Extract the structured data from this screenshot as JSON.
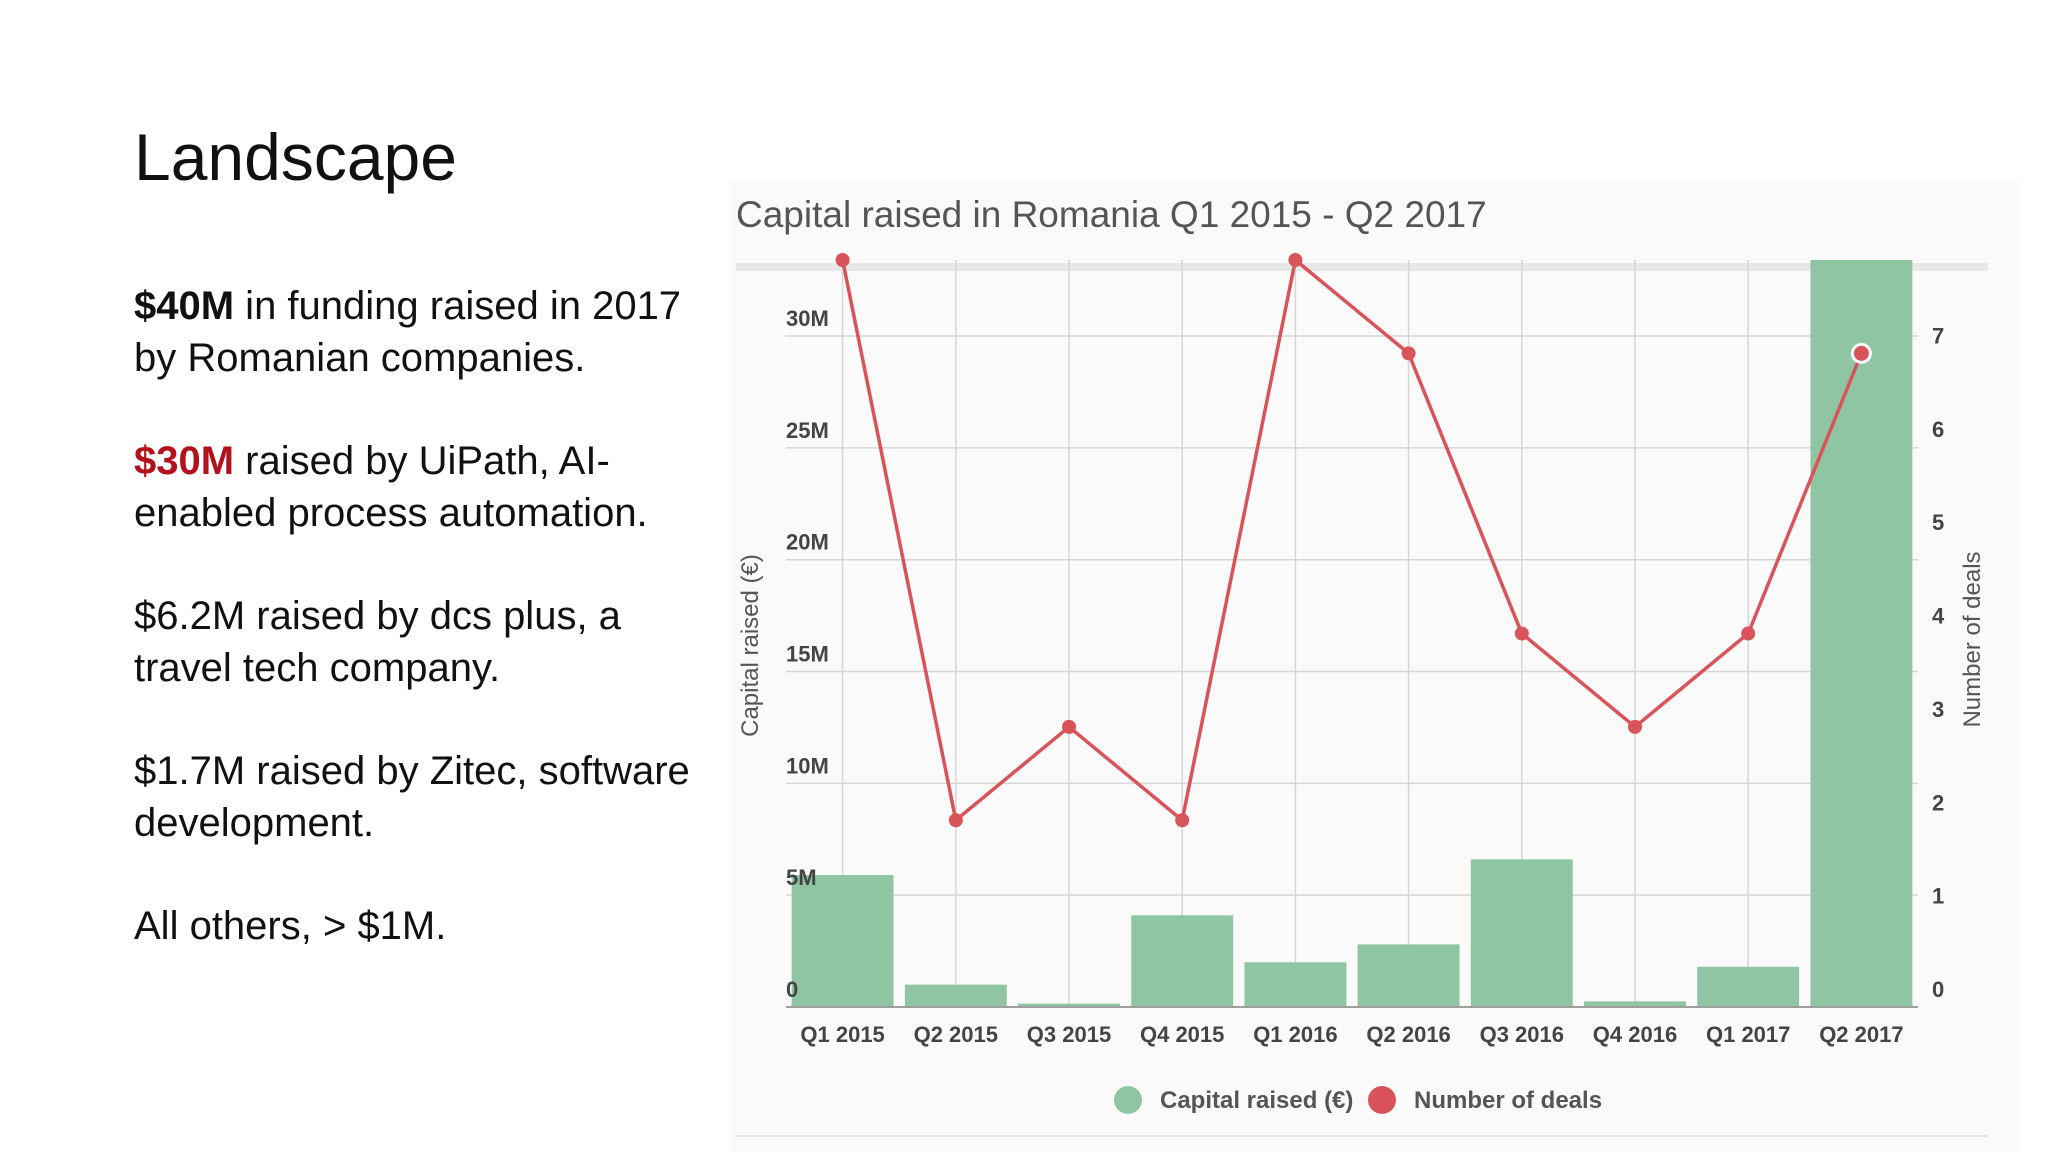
{
  "slide": {
    "title": "Landscape",
    "bullets": [
      {
        "highlight": "$40M",
        "highlight_color": "#111111",
        "text": " in funding raised in 2017 by Romanian companies."
      },
      {
        "highlight": "$30M",
        "highlight_color": "#b3121d",
        "text": " raised by UiPath, AI-enabled process automation."
      },
      {
        "highlight": "",
        "highlight_color": "#111111",
        "text": "$6.2M raised by dcs plus, a travel tech company."
      },
      {
        "highlight": "",
        "highlight_color": "#111111",
        "text": "$1.7M raised by Zitec, software development."
      },
      {
        "highlight": "",
        "highlight_color": "#111111",
        "text": "All others, > $1M."
      }
    ]
  },
  "chart_data": {
    "type": "bar",
    "title": "Capital raised in Romania Q1 2015 - Q2 2017",
    "categories": [
      "Q1 2015",
      "Q2 2015",
      "Q3 2015",
      "Q4 2015",
      "Q1 2016",
      "Q2 2016",
      "Q3 2016",
      "Q4 2016",
      "Q1 2017",
      "Q2 2017"
    ],
    "series": [
      {
        "name": "Capital raised (€)",
        "type": "bar",
        "axis": "left",
        "color": "#8fc5a3",
        "values": [
          5.9,
          1.0,
          0.15,
          4.1,
          2.0,
          2.8,
          6.6,
          0.25,
          1.8,
          33.4
        ]
      },
      {
        "name": "Number of deals",
        "type": "line",
        "axis": "right",
        "color": "#d9545a",
        "values": [
          8,
          2,
          3,
          2,
          8,
          7,
          4,
          3,
          4,
          7
        ]
      }
    ],
    "ylabel": "Capital raised (€)",
    "ylabel_right": "Number of deals",
    "ylim": [
      0,
      33.4
    ],
    "y_ticks": [
      0,
      5,
      10,
      15,
      20,
      25,
      30
    ],
    "y_tick_labels": [
      "0",
      "5M",
      "10M",
      "15M",
      "20M",
      "25M",
      "30M"
    ],
    "ylim_right": [
      0,
      8
    ],
    "y_ticks_right": [
      0,
      1,
      2,
      3,
      4,
      5,
      6,
      7
    ],
    "y_tick_labels_right": [
      "0",
      "1",
      "2",
      "3",
      "4",
      "5",
      "6",
      "7"
    ],
    "grid": true,
    "legend_position": "bottom"
  }
}
